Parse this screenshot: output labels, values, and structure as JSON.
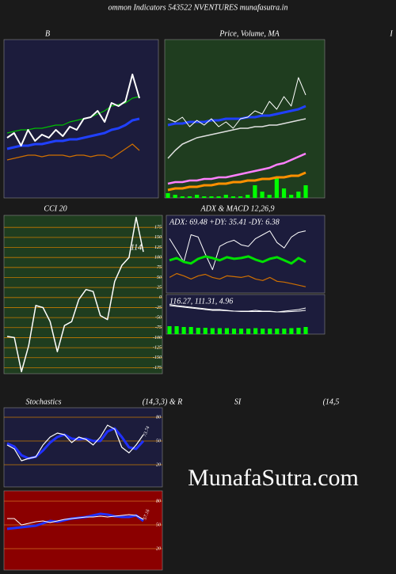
{
  "title": "ommon  Indicators 543522  NVENTURES munafasutra.in",
  "edge": "I",
  "watermark": "MunafaSutra.com",
  "chart_data": [
    {
      "type": "line",
      "title": "B",
      "background": "#1c1c3c",
      "ylim": [
        0,
        100
      ],
      "series": [
        {
          "color": "#00c000",
          "width": 1.2,
          "values": [
            41,
            42,
            43,
            43,
            44,
            44,
            45,
            46,
            46,
            48,
            49,
            50,
            51,
            53,
            55,
            58,
            59,
            60,
            63,
            64
          ]
        },
        {
          "color": "#2040ff",
          "width": 3,
          "values": [
            31,
            32,
            33,
            33,
            34,
            34,
            35,
            36,
            36,
            37,
            37,
            38,
            39,
            40,
            41,
            43,
            44,
            46,
            49,
            50
          ]
        },
        {
          "color": "#d07000",
          "width": 1.2,
          "values": [
            24,
            25,
            26,
            27,
            27,
            26,
            27,
            27,
            27,
            26,
            27,
            27,
            26,
            27,
            27,
            25,
            28,
            31,
            34,
            30
          ]
        },
        {
          "color": "#ffffff",
          "width": 2,
          "values": [
            38,
            41,
            33,
            43,
            36,
            40,
            38,
            43,
            39,
            45,
            43,
            50,
            51,
            55,
            48,
            60,
            58,
            61,
            78,
            63
          ]
        }
      ]
    },
    {
      "type": "line",
      "title": "Price,  Volume, MA",
      "background": "#1f3d1f",
      "ylim": [
        0,
        100
      ],
      "series": [
        {
          "type": "bar",
          "color": "#00ff00",
          "values": [
            3,
            2,
            1,
            1,
            2,
            1,
            1,
            1,
            2,
            1,
            1,
            2,
            8,
            4,
            2,
            13,
            6,
            2,
            4,
            8
          ]
        },
        {
          "color": "#ff80ff",
          "width": 2.5,
          "values": [
            9,
            10,
            10,
            11,
            11,
            12,
            12,
            13,
            13,
            14,
            15,
            16,
            17,
            18,
            19,
            21,
            22,
            24,
            26,
            28
          ]
        },
        {
          "color": "#ff9000",
          "width": 3,
          "values": [
            5,
            6,
            6,
            7,
            7,
            8,
            8,
            9,
            9,
            10,
            10,
            11,
            11,
            12,
            12,
            13,
            13,
            14,
            14,
            16
          ]
        },
        {
          "color": "#e0e0e0",
          "width": 1.5,
          "values": [
            25,
            30,
            34,
            36,
            38,
            39,
            40,
            41,
            42,
            43,
            44,
            44,
            45,
            45,
            46,
            46,
            47,
            48,
            49,
            50
          ]
        },
        {
          "color": "#2040ff",
          "width": 3,
          "values": [
            46,
            47,
            47,
            48,
            48,
            48,
            49,
            49,
            50,
            50,
            50,
            51,
            51,
            52,
            52,
            53,
            54,
            55,
            56,
            58
          ]
        },
        {
          "color": "#ffffff",
          "width": 1,
          "values": [
            50,
            48,
            51,
            45,
            49,
            46,
            50,
            45,
            48,
            44,
            50,
            51,
            55,
            53,
            61,
            56,
            64,
            58,
            76,
            65
          ]
        }
      ]
    },
    {
      "type": "line",
      "title": "CCI 20",
      "annotation": "114",
      "background": "#1f3d1f",
      "grid": true,
      "grid_color": "#c87a00",
      "ylim": [
        -190,
        205
      ],
      "yticks": [
        175,
        150,
        125,
        100,
        75,
        50,
        25,
        0,
        -25,
        -50,
        -75,
        -100,
        -125,
        -150,
        -175
      ],
      "series": [
        {
          "color": "#ffffff",
          "width": 1.5,
          "values": [
            -97,
            -100,
            -185,
            -120,
            -20,
            -25,
            -60,
            -135,
            -70,
            -60,
            -5,
            20,
            15,
            -45,
            -55,
            40,
            80,
            100,
            200,
            114
          ]
        }
      ]
    },
    {
      "type": "line",
      "title": "ADX  & MACD 12,26,9",
      "annotation": "ADX: 69.48  +DY: 35.41 -DY: 6.38",
      "background": "#1c1c3c",
      "ylim": [
        0,
        100
      ],
      "series": [
        {
          "color": "#d07000",
          "width": 1.2,
          "values": [
            20,
            25,
            22,
            18,
            22,
            24,
            20,
            18,
            22,
            21,
            20,
            22,
            18,
            16,
            20,
            15,
            14,
            12,
            10,
            8
          ]
        },
        {
          "color": "#ffffff",
          "width": 1,
          "values": [
            70,
            55,
            40,
            75,
            72,
            50,
            30,
            60,
            65,
            68,
            62,
            60,
            70,
            75,
            80,
            65,
            58,
            72,
            78,
            80
          ]
        },
        {
          "color": "#00e000",
          "width": 3,
          "values": [
            42,
            45,
            40,
            38,
            44,
            47,
            45,
            42,
            46,
            44,
            45,
            47,
            43,
            40,
            44,
            46,
            42,
            38,
            45,
            40
          ]
        }
      ]
    },
    {
      "type": "line",
      "annotation": "116.27,  111.31,  4.96",
      "background": "#1c1c3c",
      "ylim": [
        0,
        100
      ],
      "series": [
        {
          "type": "bar",
          "color": "#00ff00",
          "values": [
            20,
            20,
            18,
            18,
            16,
            16,
            15,
            15,
            15,
            14,
            14,
            14,
            15,
            14,
            14,
            14,
            14,
            15,
            16,
            18
          ]
        },
        {
          "color": "#ffffff",
          "width": 1,
          "values": [
            72,
            70,
            68,
            66,
            64,
            62,
            60,
            60,
            59,
            58,
            57,
            57,
            57,
            57,
            57,
            56,
            56,
            57,
            58,
            60
          ]
        },
        {
          "color": "#ffffff",
          "width": 1,
          "values": [
            75,
            72,
            70,
            68,
            66,
            64,
            62,
            62,
            60,
            58,
            58,
            58,
            60,
            58,
            58,
            56,
            58,
            60,
            62,
            66
          ]
        }
      ]
    },
    {
      "type": "line",
      "title": "Stochastics",
      "subtitle": "(14,3,3) & R",
      "annotation": "73.74",
      "background": "#1c1c3c",
      "grid": true,
      "grid_color": "#c87a00",
      "ylim": [
        -8,
        92
      ],
      "yticks": [
        80,
        50,
        20
      ],
      "series": [
        {
          "color": "#2030ff",
          "width": 3,
          "values": [
            47,
            43,
            32,
            28,
            30,
            38,
            48,
            55,
            58,
            53,
            52,
            53,
            50,
            50,
            62,
            66,
            55,
            42,
            40,
            50
          ]
        },
        {
          "color": "#ffffff",
          "width": 1.2,
          "values": [
            45,
            40,
            25,
            28,
            30,
            45,
            55,
            60,
            58,
            48,
            55,
            52,
            45,
            55,
            70,
            65,
            42,
            35,
            45,
            58
          ]
        }
      ]
    },
    {
      "type": "line",
      "title": "SI",
      "subtitle": "(14,5",
      "annotation": "57.16",
      "background": "#8b0000",
      "grid": true,
      "grid_color": "#d07020",
      "ylim": [
        -7,
        93
      ],
      "yticks": [
        80,
        50,
        20
      ],
      "series": [
        {
          "color": "#2030ff",
          "width": 3,
          "values": [
            45,
            46,
            47,
            48,
            49,
            52,
            55,
            54,
            56,
            58,
            59,
            60,
            62,
            64,
            63,
            61,
            60,
            60,
            62,
            55
          ]
        },
        {
          "color": "#ffffff",
          "width": 1,
          "values": [
            58,
            58,
            50,
            52,
            54,
            55,
            53,
            55,
            57,
            58,
            59,
            60,
            60,
            61,
            60,
            61,
            62,
            63,
            62,
            57
          ]
        }
      ]
    }
  ]
}
